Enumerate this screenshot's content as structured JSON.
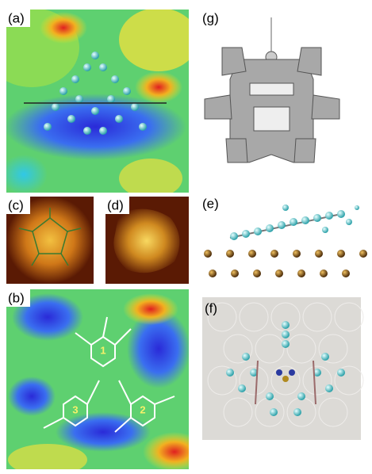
{
  "panels": [
    {
      "label": "(a)"
    },
    {
      "label": "(b)",
      "sites": [
        "1",
        "2",
        "3"
      ]
    },
    {
      "label": "(c)"
    },
    {
      "label": "(d)"
    },
    {
      "label": "(e)"
    },
    {
      "label": "(f)"
    },
    {
      "label": "(g)"
    }
  ]
}
